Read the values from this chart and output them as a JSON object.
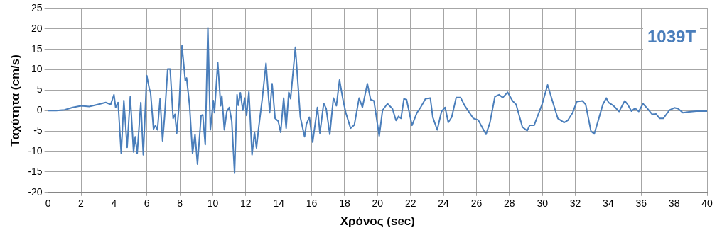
{
  "chart_data": {
    "type": "line",
    "xlabel": "Χρόνος (sec)",
    "ylabel": "Ταχύτητα (cm/s)",
    "annotations": [
      "1039T"
    ],
    "xlim": [
      0,
      40
    ],
    "xticks": [
      0,
      2,
      4,
      6,
      8,
      10,
      12,
      14,
      16,
      18,
      20,
      22,
      24,
      26,
      28,
      30,
      32,
      34,
      36,
      38,
      40
    ],
    "ylim": [
      -20,
      25
    ],
    "yticks": [
      -20,
      -15,
      -10,
      -5,
      0,
      5,
      10,
      15,
      20,
      25
    ],
    "grid": true,
    "legend": false,
    "marker": "none",
    "line_style": "solid",
    "series": [
      {
        "color": "#4a7ebb",
        "x": [
          0,
          0.5,
          1,
          1.5,
          2,
          2.5,
          3,
          3.5,
          3.8,
          4.0,
          4.1,
          4.25,
          4.44,
          4.6,
          4.8,
          4.99,
          5.19,
          5.29,
          5.41,
          5.63,
          5.78,
          5.99,
          6.15,
          6.22,
          6.4,
          6.52,
          6.64,
          6.8,
          6.95,
          7.07,
          7.26,
          7.41,
          7.59,
          7.7,
          7.81,
          7.96,
          8.13,
          8.33,
          8.41,
          8.59,
          8.77,
          8.92,
          9.07,
          9.29,
          9.39,
          9.54,
          9.7,
          9.85,
          10.03,
          10.1,
          10.3,
          10.48,
          10.55,
          10.7,
          10.85,
          11.0,
          11.15,
          11.32,
          11.47,
          11.55,
          11.67,
          11.82,
          11.93,
          12.05,
          12.19,
          12.38,
          12.53,
          12.65,
          12.78,
          13.0,
          13.23,
          13.45,
          13.6,
          13.78,
          13.97,
          14.12,
          14.3,
          14.45,
          14.61,
          14.72,
          15.01,
          15.31,
          15.57,
          15.68,
          15.86,
          16.06,
          16.35,
          16.5,
          16.73,
          16.88,
          17.1,
          17.32,
          17.5,
          17.69,
          17.89,
          18.07,
          18.36,
          18.59,
          18.88,
          19.08,
          19.38,
          19.58,
          19.78,
          20.1,
          20.3,
          20.6,
          20.9,
          21.12,
          21.27,
          21.42,
          21.6,
          21.76,
          22.09,
          22.39,
          22.61,
          22.91,
          23.2,
          23.35,
          23.62,
          23.88,
          24.1,
          24.29,
          24.5,
          24.77,
          25.04,
          25.29,
          25.81,
          26.11,
          26.38,
          26.58,
          26.82,
          27.12,
          27.37,
          27.6,
          27.89,
          28.19,
          28.41,
          28.79,
          29.08,
          29.23,
          29.5,
          29.98,
          30.32,
          30.57,
          30.94,
          31.32,
          31.54,
          31.84,
          32.09,
          32.43,
          32.63,
          32.95,
          33.15,
          33.4,
          33.67,
          33.88,
          34.02,
          34.29,
          34.66,
          35.0,
          35.18,
          35.41,
          35.63,
          35.85,
          36.11,
          36.38,
          36.67,
          36.9,
          37.12,
          37.34,
          37.71,
          38.01,
          38.24,
          38.53,
          38.9,
          39.35,
          40
        ],
        "values": [
          0,
          0,
          0.2,
          0.8,
          1.2,
          1.0,
          1.5,
          2.0,
          1.5,
          3.9,
          0.8,
          2,
          -10.5,
          2.5,
          -9,
          3.4,
          -10.1,
          -6.4,
          -10.5,
          2,
          -10.8,
          8.6,
          5.3,
          4.5,
          -4.5,
          -3.6,
          -4.7,
          3,
          -7.4,
          -1.6,
          10.2,
          10.2,
          -1.9,
          -0.9,
          -5.5,
          1.8,
          15.9,
          7.3,
          8,
          1.2,
          -10.5,
          -5.8,
          -13.1,
          -1.2,
          -1,
          -8.3,
          20.3,
          -4.7,
          2.5,
          -0.5,
          11.8,
          1.2,
          3.6,
          -4.7,
          -0.2,
          0.8,
          -2.6,
          -15.3,
          3.9,
          1.3,
          4.4,
          0.1,
          3.1,
          -1.2,
          4.6,
          -10.8,
          -5.3,
          -9.1,
          -4.3,
          2.9,
          11.6,
          -0.5,
          6.6,
          -1.9,
          -2.6,
          -5.3,
          3.1,
          -4.3,
          4.5,
          2.9,
          15.5,
          -1.6,
          -6.4,
          -3.3,
          -1.6,
          -7.7,
          0.8,
          -5.5,
          1.8,
          0.5,
          -5.8,
          3.1,
          1.2,
          7.5,
          2.9,
          -0.5,
          -4.3,
          -3.5,
          3.1,
          0.8,
          6.6,
          2.7,
          2.4,
          -6.2,
          0.1,
          1.7,
          0.5,
          -2.4,
          -1.4,
          -1.9,
          2.9,
          2.7,
          -3.6,
          -0.5,
          0.8,
          2.9,
          3.1,
          -1.6,
          -4.7,
          -0.2,
          0.8,
          -2.9,
          -1.6,
          3.2,
          3.2,
          1.2,
          -1.9,
          -2.3,
          -4.3,
          -5.8,
          -2.9,
          3.4,
          3.9,
          3.2,
          4.5,
          2.4,
          1.5,
          -4.0,
          -4.9,
          -3.6,
          -3.6,
          1.5,
          6.3,
          2.9,
          -1.9,
          -2.9,
          -2.4,
          -0.5,
          2.2,
          2.4,
          1.5,
          -5.0,
          -5.7,
          -2.3,
          1.5,
          3.1,
          2.0,
          1.3,
          -0.2,
          2.4,
          1.5,
          -0.1,
          0.6,
          -0.2,
          1.7,
          0.5,
          -0.9,
          -0.8,
          -1.9,
          -1.9,
          0.1,
          0.7,
          0.5,
          -0.5,
          -0.3,
          -0.1,
          -0.1
        ]
      }
    ]
  }
}
